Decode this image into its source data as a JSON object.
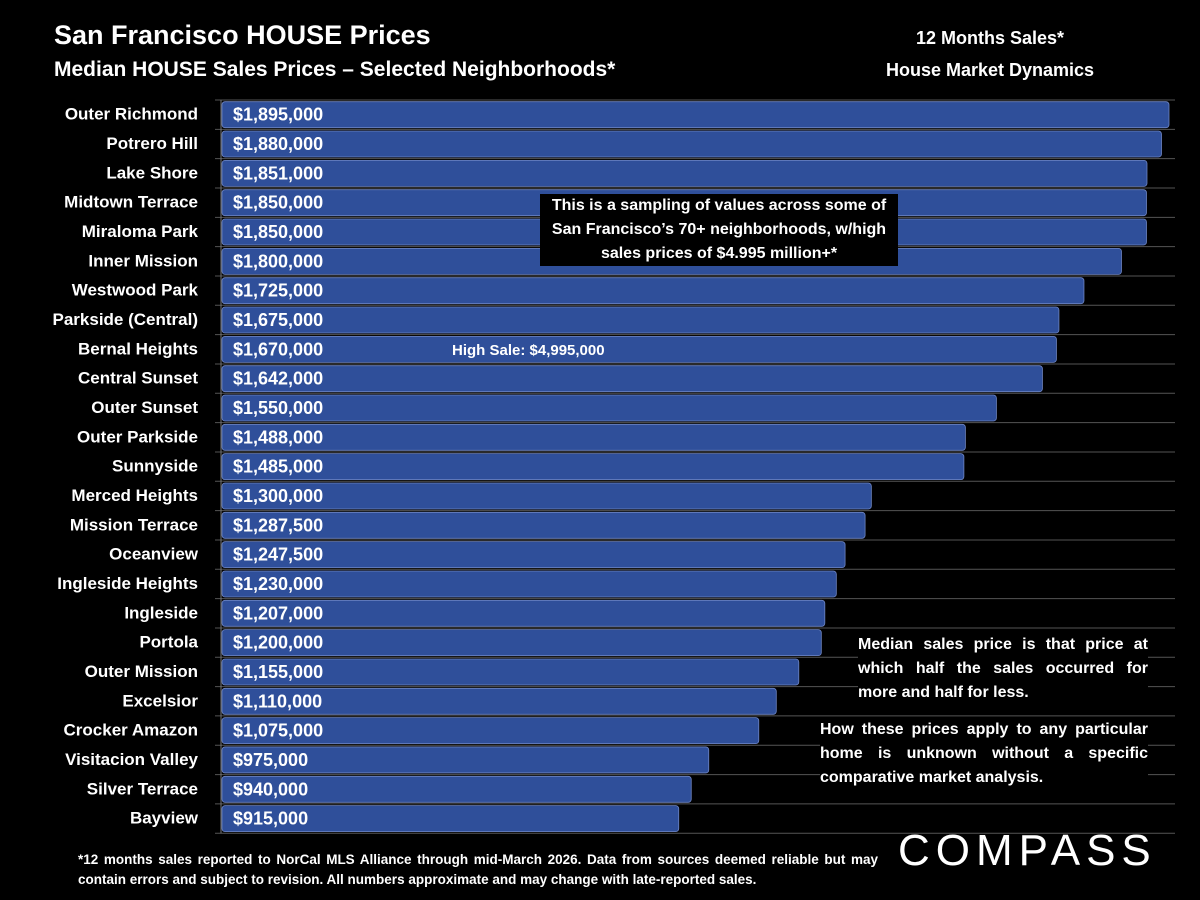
{
  "header": {
    "title": "San Francisco HOUSE Prices",
    "subtitle": "Median HOUSE Sales Prices – Selected Neighborhoods*",
    "side_line1": "12 Months Sales*",
    "side_line2": "House Market Dynamics"
  },
  "chart_data": {
    "type": "bar",
    "orientation": "horizontal",
    "xlim": [
      0,
      1895000
    ],
    "grid": "horizontal lines between rows",
    "bar_color": "#2f4f9a",
    "categories": [
      "Outer Richmond",
      "Potrero Hill",
      "Lake Shore",
      "Midtown Terrace",
      "Miraloma Park",
      "Inner Mission",
      "Westwood Park",
      "Parkside (Central)",
      "Bernal Heights",
      "Central Sunset",
      "Outer Sunset",
      "Outer Parkside",
      "Sunnyside",
      "Merced Heights",
      "Mission Terrace",
      "Oceanview",
      "Ingleside Heights",
      "Ingleside",
      "Portola",
      "Outer Mission",
      "Excelsior",
      "Crocker Amazon",
      "Visitacion Valley",
      "Silver Terrace",
      "Bayview"
    ],
    "values": [
      1895000,
      1880000,
      1851000,
      1850000,
      1850000,
      1800000,
      1725000,
      1675000,
      1670000,
      1642000,
      1550000,
      1488000,
      1485000,
      1300000,
      1287500,
      1247500,
      1230000,
      1207000,
      1200000,
      1155000,
      1110000,
      1075000,
      975000,
      940000,
      915000
    ],
    "data_labels": [
      "$1,895,000",
      "$1,880,000",
      "$1,851,000",
      "$1,850,000",
      "$1,850,000",
      "$1,800,000",
      "$1,725,000",
      "$1,675,000",
      "$1,670,000",
      "$1,642,000",
      "$1,550,000",
      "$1,488,000",
      "$1,485,000",
      "$1,300,000",
      "$1,287,500",
      "$1,247,500",
      "$1,230,000",
      "$1,207,000",
      "$1,200,000",
      "$1,155,000",
      "$1,110,000",
      "$1,075,000",
      "$975,000",
      "$940,000",
      "$915,000"
    ]
  },
  "annotations": {
    "sampling": "This is a sampling of values across some of San Francisco’s 70+ neighborhoods, w/high sales prices of $4.995 million+*",
    "high_sale": "High Sale:  $4,995,000",
    "median_def": "Median sales price is that price at which half the sales occurred for more and half for less.",
    "apply": "How these prices apply to any particular home is unknown without a specific comparative market analysis."
  },
  "footnote": "*12 months sales reported to NorCal MLS Alliance through mid-March 2026. Data from sources deemed reliable but may contain errors and subject to revision. All numbers approximate and may change with late-reported sales.",
  "logo": "COMPASS"
}
